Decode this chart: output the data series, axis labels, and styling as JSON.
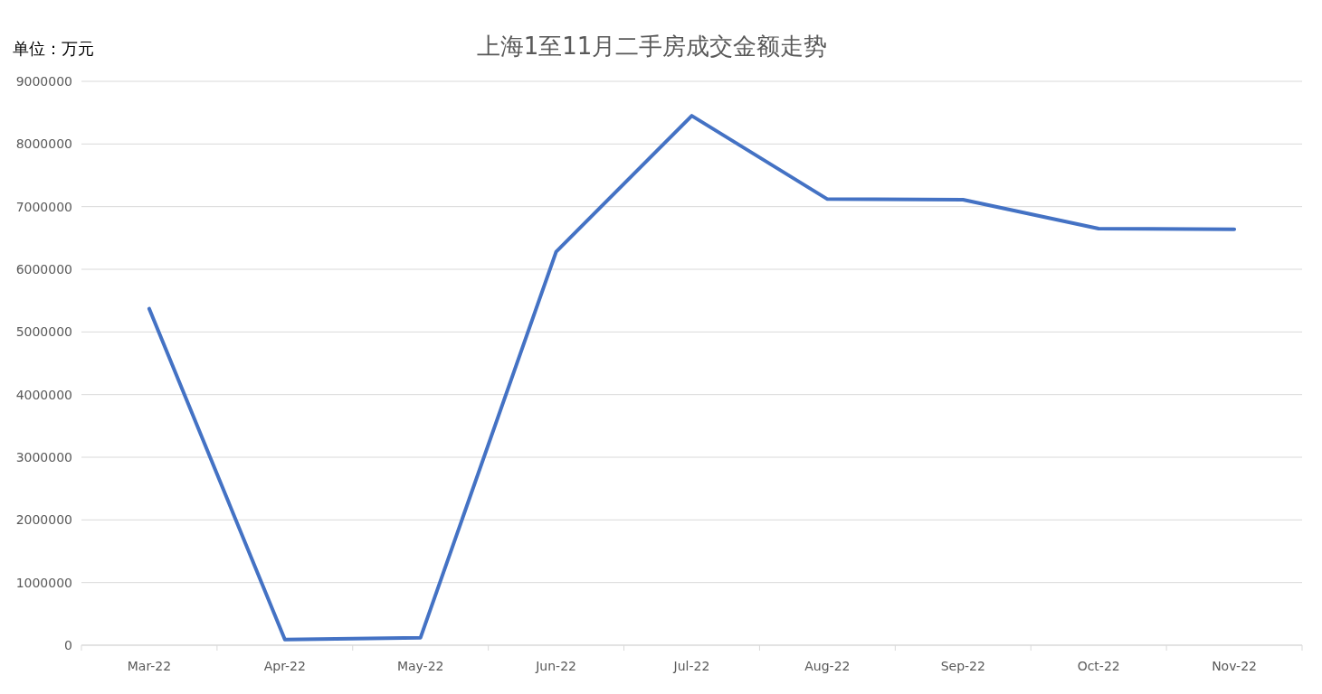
{
  "chart_data": {
    "type": "line",
    "title": "上海1至11月二手房成交金额走势",
    "ylabel": "单位：万元",
    "categories": [
      "Mar-22",
      "Apr-22",
      "May-22",
      "Jun-22",
      "Jul-22",
      "Aug-22",
      "Sep-22",
      "Oct-22",
      "Nov-22"
    ],
    "series": [
      {
        "color": "#4472c4",
        "values": [
          5370000,
          90000,
          120000,
          6280000,
          8450000,
          7120000,
          7110000,
          6650000,
          6640000
        ]
      }
    ],
    "ylim": [
      0,
      9000000
    ],
    "yticks": [
      0,
      1000000,
      2000000,
      3000000,
      4000000,
      5000000,
      6000000,
      7000000,
      8000000,
      9000000
    ],
    "grid": "y",
    "marker": "none",
    "line_style": "solid"
  }
}
